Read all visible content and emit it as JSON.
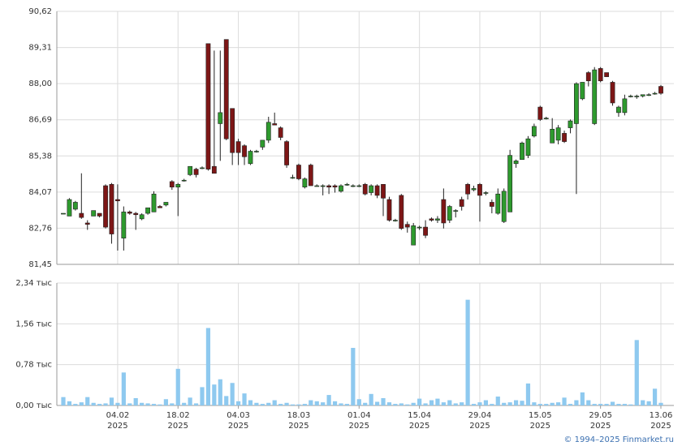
{
  "chart_data": {
    "type": "candlestick",
    "categories": [
      null,
      null,
      null,
      null,
      null,
      null,
      null,
      null,
      null,
      [
        "04.02",
        "2025"
      ],
      null,
      null,
      null,
      null,
      null,
      null,
      null,
      null,
      null,
      [
        "18.02",
        "2025"
      ],
      null,
      null,
      null,
      null,
      null,
      null,
      null,
      null,
      null,
      [
        "04.03",
        "2025"
      ],
      null,
      null,
      null,
      null,
      null,
      null,
      null,
      null,
      null,
      [
        "18.03",
        "2025"
      ],
      null,
      null,
      null,
      null,
      null,
      null,
      null,
      null,
      null,
      [
        "01.04",
        "2025"
      ],
      null,
      null,
      null,
      null,
      null,
      null,
      null,
      null,
      null,
      [
        "15.04",
        "2025"
      ],
      null,
      null,
      null,
      null,
      null,
      null,
      null,
      null,
      null,
      [
        "29.04",
        "2025"
      ],
      null,
      null,
      null,
      null,
      null,
      null,
      null,
      null,
      null,
      [
        "15.05",
        "2025"
      ],
      null,
      null,
      null,
      null,
      null,
      null,
      null,
      null,
      null,
      [
        "29.05",
        "2025"
      ],
      null,
      null,
      null,
      null,
      null,
      null,
      null,
      null,
      null,
      [
        "13.06",
        "2025"
      ]
    ],
    "open": [
      83.3,
      83.2,
      83.45,
      83.3,
      82.95,
      83.2,
      83.3,
      84.3,
      84.35,
      83.8,
      82.4,
      83.35,
      83.3,
      83.1,
      83.3,
      83.35,
      83.55,
      83.6,
      84.45,
      84.25,
      84.5,
      84.7,
      84.9,
      84.95,
      89.45,
      85.0,
      86.55,
      89.6,
      87.1,
      85.9,
      85.75,
      85.1,
      85.55,
      85.7,
      85.95,
      86.55,
      86.4,
      85.9,
      84.6,
      85.05,
      84.25,
      85.05,
      84.3,
      84.3,
      84.3,
      84.3,
      84.1,
      84.35,
      84.3,
      84.3,
      84.35,
      84.05,
      84.3,
      84.35,
      83.8,
      83.05,
      83.95,
      82.9,
      82.15,
      82.8,
      82.8,
      83.1,
      83.05,
      83.8,
      83.05,
      83.4,
      83.8,
      84.35,
      84.15,
      84.35,
      84.05,
      83.7,
      83.3,
      83.0,
      83.35,
      85.1,
      85.25,
      85.4,
      86.1,
      87.15,
      86.75,
      85.85,
      85.95,
      86.2,
      86.4,
      86.55,
      87.45,
      88.4,
      86.55,
      88.55,
      88.4,
      88.05,
      86.95,
      86.95,
      87.55,
      87.55,
      87.55,
      87.6,
      87.65,
      87.9
    ],
    "high": [
      83.3,
      83.85,
      83.75,
      84.75,
      83.05,
      83.4,
      83.3,
      84.35,
      84.4,
      84.35,
      83.55,
      83.4,
      83.35,
      83.3,
      83.5,
      84.1,
      83.6,
      83.7,
      84.5,
      84.4,
      84.55,
      85.0,
      84.95,
      85.0,
      89.45,
      89.2,
      89.2,
      89.6,
      87.1,
      86.0,
      85.8,
      85.6,
      85.6,
      85.95,
      86.8,
      86.95,
      86.45,
      85.95,
      84.7,
      85.1,
      84.6,
      85.1,
      84.35,
      84.35,
      84.35,
      84.35,
      84.35,
      84.4,
      84.35,
      84.35,
      84.4,
      84.35,
      84.35,
      84.35,
      83.9,
      83.1,
      84.0,
      83.0,
      82.95,
      82.85,
      83.05,
      83.15,
      83.2,
      84.2,
      83.6,
      83.45,
      83.9,
      84.4,
      84.3,
      84.4,
      84.1,
      83.8,
      84.2,
      84.2,
      85.6,
      85.25,
      85.9,
      86.1,
      86.55,
      87.2,
      86.8,
      86.75,
      86.5,
      86.3,
      86.7,
      88.05,
      88.05,
      88.45,
      88.6,
      88.6,
      88.4,
      88.1,
      87.2,
      87.6,
      87.6,
      87.6,
      87.6,
      87.65,
      87.7,
      87.95
    ],
    "low": [
      83.3,
      83.2,
      83.4,
      83.1,
      82.7,
      83.2,
      83.15,
      82.75,
      82.2,
      81.95,
      81.95,
      83.25,
      82.7,
      83.05,
      83.25,
      83.35,
      83.5,
      83.55,
      84.15,
      83.2,
      84.45,
      84.65,
      84.6,
      84.9,
      84.85,
      84.75,
      85.2,
      85.95,
      85.05,
      85.05,
      85.05,
      85.05,
      85.5,
      85.6,
      85.85,
      86.5,
      85.95,
      84.95,
      84.55,
      84.5,
      84.2,
      84.3,
      84.3,
      83.95,
      84.0,
      84.05,
      84.05,
      84.3,
      84.25,
      84.25,
      83.95,
      83.95,
      83.85,
      83.2,
      83.0,
      83.0,
      82.7,
      82.6,
      82.15,
      82.7,
      82.4,
      83.0,
      82.95,
      82.75,
      82.95,
      83.15,
      83.4,
      83.8,
      84.1,
      83.0,
      83.95,
      83.3,
      83.25,
      82.95,
      83.35,
      84.95,
      85.25,
      85.3,
      86.05,
      86.65,
      86.7,
      85.85,
      85.8,
      85.85,
      86.2,
      84.0,
      87.4,
      87.9,
      86.5,
      88.05,
      88.25,
      87.2,
      86.8,
      86.85,
      87.5,
      87.45,
      87.5,
      87.55,
      87.6,
      87.6
    ],
    "close": [
      83.3,
      83.8,
      83.7,
      83.15,
      82.9,
      83.4,
      83.2,
      82.8,
      82.55,
      83.75,
      83.35,
      83.3,
      83.25,
      83.25,
      83.5,
      84.0,
      83.5,
      83.7,
      84.25,
      84.35,
      84.5,
      85.0,
      84.7,
      84.95,
      84.9,
      84.75,
      86.95,
      86.0,
      85.5,
      85.5,
      85.35,
      85.55,
      85.55,
      85.95,
      86.6,
      86.5,
      86.05,
      85.05,
      84.6,
      84.55,
      84.55,
      84.3,
      84.3,
      84.3,
      84.25,
      84.25,
      84.3,
      84.35,
      84.3,
      84.3,
      84.0,
      84.3,
      83.95,
      83.85,
      83.05,
      83.05,
      82.75,
      82.8,
      82.85,
      82.8,
      82.5,
      83.05,
      83.1,
      82.95,
      83.55,
      83.4,
      83.55,
      84.0,
      84.2,
      83.95,
      84.05,
      83.55,
      84.0,
      84.1,
      85.4,
      85.2,
      85.85,
      86.0,
      86.45,
      86.7,
      86.75,
      86.35,
      86.4,
      85.9,
      86.65,
      88.0,
      88.05,
      88.1,
      88.5,
      88.1,
      88.25,
      87.3,
      87.15,
      87.45,
      87.55,
      87.55,
      87.6,
      87.6,
      87.65,
      87.65
    ],
    "up_color": "#2e9a2e",
    "down_color": "#7d1616",
    "ylim": [
      81.45,
      90.62
    ],
    "yticks": [
      {
        "value": 81.45,
        "label": "81,45"
      },
      {
        "value": 82.76,
        "label": "82,76"
      },
      {
        "value": 84.07,
        "label": "84,07"
      },
      {
        "value": 85.38,
        "label": "85,38"
      },
      {
        "value": 86.69,
        "label": "86,69"
      },
      {
        "value": 88.0,
        "label": "88,00"
      },
      {
        "value": 89.31,
        "label": "89,31"
      },
      {
        "value": 90.62,
        "label": "90,62"
      }
    ],
    "grid": true,
    "volume": {
      "color": "#8ec9ef",
      "values": [
        0.16,
        0.08,
        0.03,
        0.06,
        0.16,
        0.05,
        0.03,
        0.04,
        0.15,
        0.05,
        0.63,
        0.04,
        0.14,
        0.05,
        0.04,
        0.03,
        0.02,
        0.12,
        0.04,
        0.7,
        0.05,
        0.15,
        0.04,
        0.35,
        1.48,
        0.4,
        0.5,
        0.18,
        0.43,
        0.08,
        0.23,
        0.1,
        0.05,
        0.03,
        0.05,
        0.1,
        0.03,
        0.05,
        0.02,
        0.02,
        0.03,
        0.1,
        0.08,
        0.06,
        0.2,
        0.08,
        0.04,
        0.03,
        1.1,
        0.12,
        0.05,
        0.22,
        0.07,
        0.14,
        0.06,
        0.03,
        0.04,
        0.02,
        0.05,
        0.13,
        0.04,
        0.1,
        0.13,
        0.06,
        0.1,
        0.04,
        0.06,
        2.02,
        0.03,
        0.06,
        0.1,
        0.03,
        0.17,
        0.05,
        0.06,
        0.1,
        0.09,
        0.42,
        0.06,
        0.03,
        0.03,
        0.05,
        0.06,
        0.15,
        0.03,
        0.1,
        0.25,
        0.1,
        0.03,
        0.03,
        0.03,
        0.07,
        0.03,
        0.03,
        0.02,
        1.25,
        0.1,
        0.08,
        0.32,
        0.05
      ],
      "ylim": [
        0,
        2.34
      ],
      "yticks": [
        {
          "value": 0,
          "label": "0,00 тыс"
        },
        {
          "value": 0.78,
          "label": "0,78 тыс"
        },
        {
          "value": 1.56,
          "label": "1,56 тыс"
        },
        {
          "value": 2.34,
          "label": "2,34 тыс"
        }
      ]
    },
    "source": "© 1994–2025 Finmarket.ru"
  }
}
